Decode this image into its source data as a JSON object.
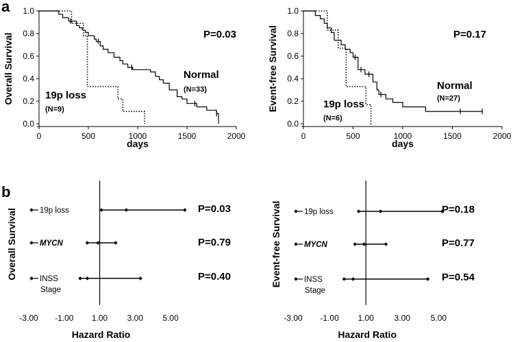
{
  "panels": {
    "a": "a",
    "b": "b"
  },
  "chart_data": [
    {
      "type": "line",
      "subtype": "kaplan-meier",
      "ylabel": "Overall Survival",
      "xlabel": "days",
      "xlim": [
        0,
        2000
      ],
      "ylim": [
        0,
        1.0
      ],
      "xticks": [
        "0",
        "500",
        "1000",
        "1500",
        "2000"
      ],
      "yticks": [
        "0.0",
        "0.2",
        "0.4",
        "0.6",
        "0.8",
        "1.0"
      ],
      "pvalue": "P=0.03",
      "series": [
        {
          "name": "Normal",
          "n_label": "(N=33)",
          "style": "solid",
          "x": [
            0,
            200,
            240,
            300,
            380,
            410,
            440,
            470,
            500,
            560,
            580,
            620,
            650,
            700,
            760,
            820,
            850,
            900,
            950,
            1000,
            1050,
            1100,
            1130,
            1180,
            1220,
            1260,
            1320,
            1400,
            1450,
            1500,
            1600,
            1700,
            1800,
            1820
          ],
          "y": [
            1.0,
            0.97,
            0.94,
            0.91,
            0.87,
            0.85,
            0.83,
            0.81,
            0.78,
            0.75,
            0.73,
            0.69,
            0.66,
            0.63,
            0.59,
            0.56,
            0.53,
            0.5,
            0.48,
            0.48,
            0.48,
            0.48,
            0.46,
            0.42,
            0.39,
            0.36,
            0.3,
            0.24,
            0.22,
            0.18,
            0.15,
            0.12,
            0.09,
            0.0
          ],
          "censor_x": [
            320,
            600,
            940,
            1580,
            1800
          ]
        },
        {
          "name": "19p loss",
          "n_label": "(N=9)",
          "style": "dotted",
          "x": [
            0,
            290,
            330,
            450,
            490,
            700,
            800,
            850,
            1070
          ],
          "y": [
            1.0,
            1.0,
            0.89,
            0.78,
            0.33,
            0.33,
            0.22,
            0.11,
            0.0
          ],
          "censor_x": []
        }
      ]
    },
    {
      "type": "line",
      "subtype": "kaplan-meier",
      "ylabel": "Event-free Survival",
      "xlabel": "days",
      "xlim": [
        0,
        2000
      ],
      "ylim": [
        0,
        1.0
      ],
      "xticks": [
        "0",
        "500",
        "1000",
        "1500",
        "2000"
      ],
      "yticks": [
        "0.0",
        "0.2",
        "0.4",
        "0.6",
        "0.8",
        "1.0"
      ],
      "pvalue": "P=0.17",
      "series": [
        {
          "name": "Normal",
          "n_label": "(N=27)",
          "style": "solid",
          "x": [
            0,
            120,
            170,
            210,
            240,
            280,
            310,
            380,
            420,
            470,
            500,
            550,
            620,
            700,
            740,
            760,
            830,
            900,
            1000,
            1230,
            1800
          ],
          "y": [
            1.0,
            0.96,
            0.93,
            0.89,
            0.85,
            0.81,
            0.74,
            0.7,
            0.66,
            0.63,
            0.59,
            0.48,
            0.44,
            0.37,
            0.3,
            0.26,
            0.22,
            0.19,
            0.15,
            0.11,
            0.11
          ],
          "censor_x": [
            520,
            580,
            660,
            780,
            1580,
            1800
          ]
        },
        {
          "name": "19p loss",
          "n_label": "(N=6)",
          "style": "dotted",
          "x": [
            0,
            190,
            240,
            350,
            430,
            630,
            680,
            700
          ],
          "y": [
            1.0,
            1.0,
            0.83,
            0.67,
            0.33,
            0.17,
            0.0,
            0.0
          ],
          "censor_x": []
        }
      ]
    },
    {
      "type": "forest",
      "ylabel": "Overall Survival",
      "xlabel": "Hazard Ratio",
      "xlim": [
        -3,
        6
      ],
      "xticks": [
        "-3.00",
        "-1.00",
        "1.00",
        "3.00",
        "5.00"
      ],
      "reference_line": 1.0,
      "rows": [
        {
          "label": "19p loss",
          "italic": false,
          "estimate": 2.5,
          "low": 1.1,
          "high": 5.8,
          "pvalue": "P=0.03"
        },
        {
          "label": "MYCN",
          "italic": true,
          "estimate": 0.9,
          "low": 0.3,
          "high": 1.9,
          "pvalue": "P=0.79"
        },
        {
          "label": "INSS",
          "label2": "Stage",
          "italic": false,
          "estimate": 0.3,
          "low": -0.1,
          "high": 3.3,
          "pvalue": "P=0.40"
        }
      ]
    },
    {
      "type": "forest",
      "ylabel": "Event-free Survival",
      "xlabel": "Hazard Ratio",
      "xlim": [
        -3,
        6
      ],
      "xticks": [
        "-3.00",
        "-1.00",
        "1.00",
        "3.00",
        "5.00"
      ],
      "reference_line": 1.0,
      "rows": [
        {
          "label": "19p loss",
          "italic": false,
          "estimate": 1.8,
          "low": 0.6,
          "high": 5.2,
          "pvalue": "P=0.18"
        },
        {
          "label": "MYCN",
          "italic": true,
          "estimate": 0.9,
          "low": 0.4,
          "high": 2.1,
          "pvalue": "P=0.77"
        },
        {
          "label": "INSS",
          "label2": "Stage",
          "italic": false,
          "estimate": 0.3,
          "low": -0.2,
          "high": 4.4,
          "pvalue": "P=0.54"
        }
      ]
    }
  ]
}
